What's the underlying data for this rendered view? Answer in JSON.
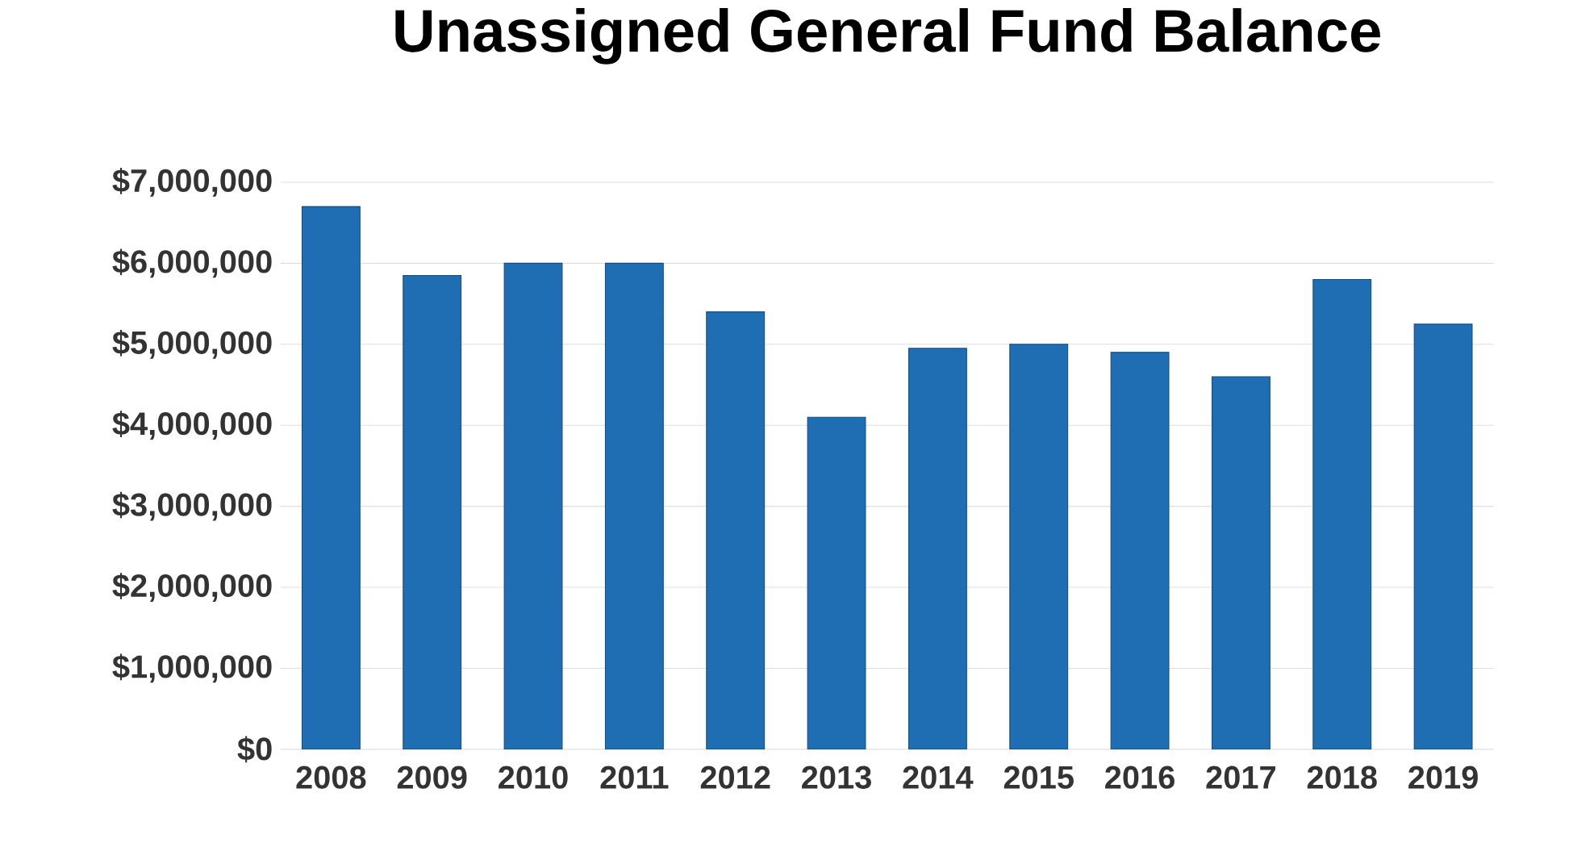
{
  "chart_data": {
    "type": "bar",
    "title": "Unassigned General Fund Balance",
    "categories": [
      "2008",
      "2009",
      "2010",
      "2011",
      "2012",
      "2013",
      "2014",
      "2015",
      "2016",
      "2017",
      "2018",
      "2019"
    ],
    "values": [
      6700000,
      5850000,
      6000000,
      6000000,
      5400000,
      4100000,
      4950000,
      5000000,
      4900000,
      4600000,
      5800000,
      5250000
    ],
    "color": "#1f6db3",
    "ylim": [
      0,
      7000000
    ],
    "yticks": [
      {
        "value": 0,
        "label": "$0"
      },
      {
        "value": 1000000,
        "label": "$1,000,000"
      },
      {
        "value": 2000000,
        "label": "$2,000,000"
      },
      {
        "value": 3000000,
        "label": "$3,000,000"
      },
      {
        "value": 4000000,
        "label": "$4,000,000"
      },
      {
        "value": 5000000,
        "label": "$5,000,000"
      },
      {
        "value": 6000000,
        "label": "$6,000,000"
      },
      {
        "value": 7000000,
        "label": "$7,000,000"
      }
    ],
    "grid": true
  }
}
